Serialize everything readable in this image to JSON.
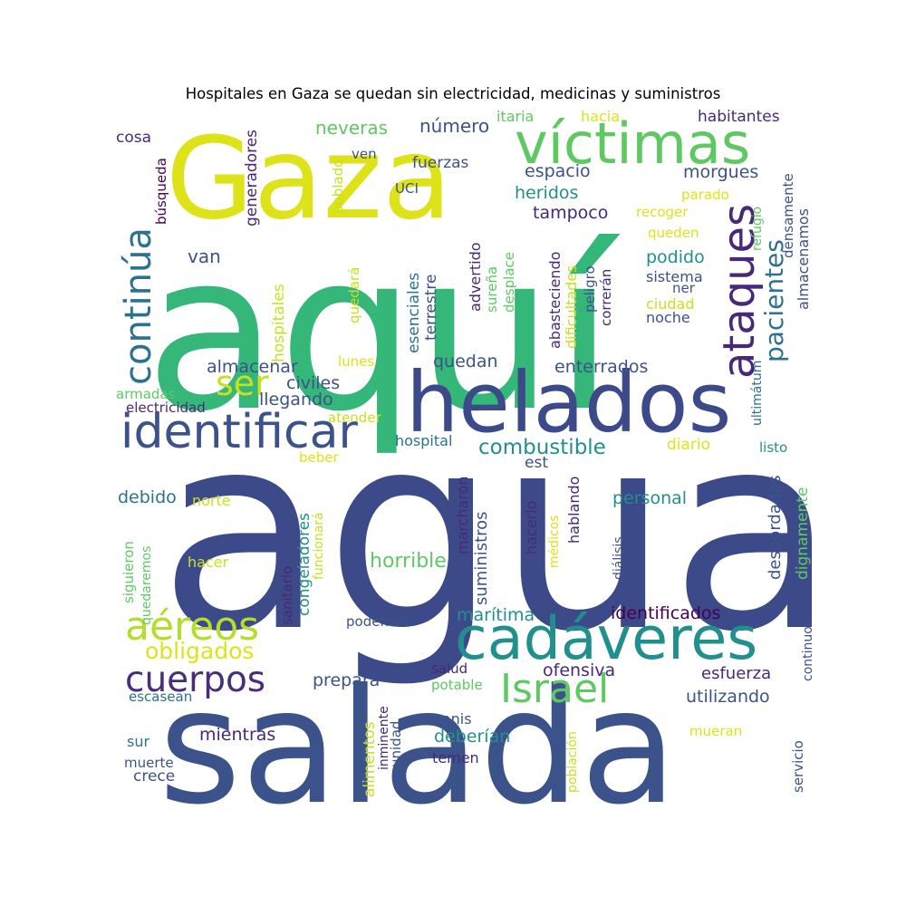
{
  "title": "Hospitales en Gaza se quedan sin electricidad, medicinas y suministros",
  "palette": {
    "dark_purple": "#440154",
    "indigo": "#3b528b",
    "navy": "#3d4a8a",
    "teal": "#21908d",
    "blue_teal": "#2c728e",
    "green": "#27ad81",
    "light_green": "#5ec962",
    "lime": "#addc30",
    "yellow": "#dde318"
  },
  "words": [
    {
      "text": "agua",
      "color": "#3d4a8a",
      "vertical": false
    },
    {
      "text": "aquí",
      "color": "#35b779",
      "vertical": false
    },
    {
      "text": "salada",
      "color": "#3b528b",
      "vertical": false
    },
    {
      "text": "helados",
      "color": "#3d4a8a",
      "vertical": false
    },
    {
      "text": "Gaza",
      "color": "#dde318",
      "vertical": false
    },
    {
      "text": "víctimas",
      "color": "#5ec962",
      "vertical": false
    },
    {
      "text": "cadáveres",
      "color": "#21908d",
      "vertical": false
    },
    {
      "text": "identificar",
      "color": "#3b528b",
      "vertical": false
    },
    {
      "text": "continúa",
      "color": "#2c728e",
      "vertical": true
    },
    {
      "text": "ataques",
      "color": "#482878",
      "vertical": true
    },
    {
      "text": "aéreos",
      "color": "#b5de2b",
      "vertical": false
    },
    {
      "text": "cuerpos",
      "color": "#472d7b",
      "vertical": false
    },
    {
      "text": "Israel",
      "color": "#5ec962",
      "vertical": false
    },
    {
      "text": "ser",
      "color": "#c8e020",
      "vertical": false
    },
    {
      "text": "pacientes",
      "color": "#2c728e",
      "vertical": true
    },
    {
      "text": "combustible",
      "color": "#21908d",
      "vertical": false
    },
    {
      "text": "obligados",
      "color": "#dde318",
      "vertical": false
    },
    {
      "text": "neveras",
      "color": "#5ec962",
      "vertical": false
    },
    {
      "text": "número",
      "color": "#3b528b",
      "vertical": false
    },
    {
      "text": "itaria",
      "color": "#5ec962",
      "vertical": false
    },
    {
      "text": "hacia",
      "color": "#dde318",
      "vertical": false
    },
    {
      "text": "habitantes",
      "color": "#482878",
      "vertical": false
    },
    {
      "text": "cosa",
      "color": "#482878",
      "vertical": false
    },
    {
      "text": "generadores",
      "color": "#482878",
      "vertical": true
    },
    {
      "text": "búsqueda",
      "color": "#440154",
      "vertical": true
    },
    {
      "text": "ven",
      "color": "#3b528b",
      "vertical": false
    },
    {
      "text": "fuerzas",
      "color": "#3b528b",
      "vertical": false
    },
    {
      "text": "espacio",
      "color": "#3b528b",
      "vertical": false
    },
    {
      "text": "morgues",
      "color": "#3b528b",
      "vertical": false
    },
    {
      "text": "densamente",
      "color": "#3b528b",
      "vertical": true
    },
    {
      "text": "almacenamos",
      "color": "#3b528b",
      "vertical": true
    },
    {
      "text": "UCI",
      "color": "#3b528b",
      "vertical": false
    },
    {
      "text": "heridos",
      "color": "#21908d",
      "vertical": false
    },
    {
      "text": "parado",
      "color": "#dde318",
      "vertical": false
    },
    {
      "text": "recoger",
      "color": "#dde318",
      "vertical": false
    },
    {
      "text": "refugio",
      "color": "#5ec962",
      "vertical": true
    },
    {
      "text": "poblado",
      "color": "#c8e020",
      "vertical": true
    },
    {
      "text": "tampoco",
      "color": "#482878",
      "vertical": false
    },
    {
      "text": "queden",
      "color": "#dde318",
      "vertical": false
    },
    {
      "text": "podido",
      "color": "#21908d",
      "vertical": false
    },
    {
      "text": "van",
      "color": "#3b528b",
      "vertical": false
    },
    {
      "text": "hospitales",
      "color": "#c8e020",
      "vertical": true
    },
    {
      "text": "esenciales",
      "color": "#2c728e",
      "vertical": true
    },
    {
      "text": "terrestre",
      "color": "#3b528b",
      "vertical": true
    },
    {
      "text": "advertido",
      "color": "#482878",
      "vertical": true
    },
    {
      "text": "sureña",
      "color": "#5ec962",
      "vertical": true
    },
    {
      "text": "desplace",
      "color": "#5ec962",
      "vertical": true
    },
    {
      "text": "abasteciendo",
      "color": "#482878",
      "vertical": true
    },
    {
      "text": "dificultades",
      "color": "#c8e020",
      "vertical": true
    },
    {
      "text": "peligro",
      "color": "#3b528b",
      "vertical": true
    },
    {
      "text": "correrán",
      "color": "#482878",
      "vertical": true
    },
    {
      "text": "sistema",
      "color": "#3b528b",
      "vertical": false
    },
    {
      "text": "ner",
      "color": "#3b528b",
      "vertical": false
    },
    {
      "text": "ciudad",
      "color": "#c8e020",
      "vertical": false
    },
    {
      "text": "noche",
      "color": "#3b528b",
      "vertical": false
    },
    {
      "text": "quedará",
      "color": "#c8e020",
      "vertical": true
    },
    {
      "text": "ultimátum",
      "color": "#2c728e",
      "vertical": true
    },
    {
      "text": "lunes",
      "color": "#dde318",
      "vertical": false
    },
    {
      "text": "quedan",
      "color": "#3b528b",
      "vertical": false
    },
    {
      "text": "enterrados",
      "color": "#3b528b",
      "vertical": false
    },
    {
      "text": "almacenar",
      "color": "#3b528b",
      "vertical": false
    },
    {
      "text": "civiles",
      "color": "#3b528b",
      "vertical": false
    },
    {
      "text": "armadas",
      "color": "#5ec962",
      "vertical": false
    },
    {
      "text": "llegando",
      "color": "#3b528b",
      "vertical": false
    },
    {
      "text": "electricidad",
      "color": "#482878",
      "vertical": false
    },
    {
      "text": "atender",
      "color": "#c8e020",
      "vertical": false
    },
    {
      "text": "hospital",
      "color": "#2c728e",
      "vertical": false
    },
    {
      "text": "diario",
      "color": "#dde318",
      "vertical": false
    },
    {
      "text": "listo",
      "color": "#21908d",
      "vertical": false
    },
    {
      "text": "beber",
      "color": "#dde318",
      "vertical": false
    },
    {
      "text": "est",
      "color": "#3b528b",
      "vertical": false
    },
    {
      "text": "desbordados",
      "color": "#3b528b",
      "vertical": true
    },
    {
      "text": "dignamente",
      "color": "#5ec962",
      "vertical": true
    },
    {
      "text": "debido",
      "color": "#2c728e",
      "vertical": false
    },
    {
      "text": "norte",
      "color": "#c8e020",
      "vertical": false
    },
    {
      "text": "congeladores",
      "color": "#21908d",
      "vertical": true
    },
    {
      "text": "marcharon",
      "color": "#482878",
      "vertical": true
    },
    {
      "text": "suministros",
      "color": "#3b528b",
      "vertical": true
    },
    {
      "text": "hacerlo",
      "color": "#482878",
      "vertical": true
    },
    {
      "text": "hablando",
      "color": "#482878",
      "vertical": true
    },
    {
      "text": "personal",
      "color": "#21908d",
      "vertical": false
    },
    {
      "text": "siguieron",
      "color": "#5ec962",
      "vertical": true
    },
    {
      "text": "quedaremos",
      "color": "#5ec962",
      "vertical": true
    },
    {
      "text": "sanitario",
      "color": "#482878",
      "vertical": true
    },
    {
      "text": "funcionará",
      "color": "#c8e020",
      "vertical": true
    },
    {
      "text": "médicos",
      "color": "#dde318",
      "vertical": true
    },
    {
      "text": "diálisis",
      "color": "#3b528b",
      "vertical": true
    },
    {
      "text": "hacer",
      "color": "#c8e020",
      "vertical": false
    },
    {
      "text": "horrible",
      "color": "#5ec962",
      "vertical": false
    },
    {
      "text": "marítima",
      "color": "#21908d",
      "vertical": false
    },
    {
      "text": "identificados",
      "color": "#440154",
      "vertical": false
    },
    {
      "text": "podemos",
      "color": "#3b528b",
      "vertical": false
    },
    {
      "text": "continuos",
      "color": "#3b528b",
      "vertical": true
    },
    {
      "text": "prepara",
      "color": "#3b528b",
      "vertical": false
    },
    {
      "text": "salud",
      "color": "#482878",
      "vertical": false
    },
    {
      "text": "potable",
      "color": "#5ec962",
      "vertical": false
    },
    {
      "text": "ofensiva",
      "color": "#482878",
      "vertical": false
    },
    {
      "text": "esfuerza",
      "color": "#482878",
      "vertical": false
    },
    {
      "text": "escasean",
      "color": "#2c728e",
      "vertical": false
    },
    {
      "text": "utilizando",
      "color": "#3b528b",
      "vertical": false
    },
    {
      "text": "alimentos",
      "color": "#c8e020",
      "vertical": true
    },
    {
      "text": "inminente",
      "color": "#482878",
      "vertical": true
    },
    {
      "text": "unidad",
      "color": "#3b528b",
      "vertical": true
    },
    {
      "text": "canis",
      "color": "#3b528b",
      "vertical": false
    },
    {
      "text": "población",
      "color": "#c8e020",
      "vertical": true
    },
    {
      "text": "mientras",
      "color": "#482878",
      "vertical": false
    },
    {
      "text": "deberían",
      "color": "#21908d",
      "vertical": false
    },
    {
      "text": "mueran",
      "color": "#dde318",
      "vertical": false
    },
    {
      "text": "servicio",
      "color": "#3b528b",
      "vertical": true
    },
    {
      "text": "sur",
      "color": "#2c728e",
      "vertical": false
    },
    {
      "text": "muerte",
      "color": "#3b528b",
      "vertical": false
    },
    {
      "text": "crece",
      "color": "#3b528b",
      "vertical": false
    },
    {
      "text": "temen",
      "color": "#482878",
      "vertical": false
    }
  ]
}
